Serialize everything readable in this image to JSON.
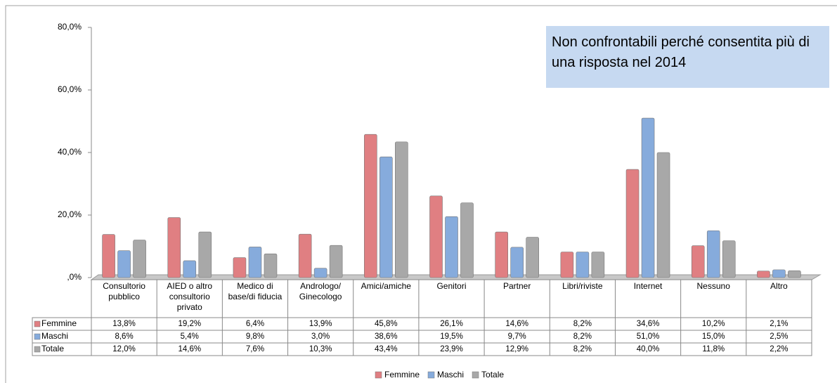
{
  "chart_data": {
    "type": "bar",
    "annotation": "Non confrontabili perché consentita più di una risposta nel 2014",
    "categories": [
      "Consultorio pubblico",
      "AIED o altro consultorio privato",
      "Medico di base/di fiducia",
      "Andrologo/ Ginecologo",
      "Amici/amiche",
      "Genitori",
      "Partner",
      "Libri/riviste",
      "Internet",
      "Nessuno",
      "Altro"
    ],
    "series": [
      {
        "name": "Femmine",
        "color": "#e07f82",
        "values": [
          13.8,
          19.2,
          6.4,
          13.9,
          45.8,
          26.1,
          14.6,
          8.2,
          34.6,
          10.2,
          2.1
        ],
        "value_labels": [
          "13,8%",
          "19,2%",
          "6,4%",
          "13,9%",
          "45,8%",
          "26,1%",
          "14,6%",
          "8,2%",
          "34,6%",
          "10,2%",
          "2,1%"
        ]
      },
      {
        "name": "Maschi",
        "color": "#86abdc",
        "values": [
          8.6,
          5.4,
          9.8,
          3.0,
          38.6,
          19.5,
          9.7,
          8.2,
          51.0,
          15.0,
          2.5
        ],
        "value_labels": [
          "8,6%",
          "5,4%",
          "9,8%",
          "3,0%",
          "38,6%",
          "19,5%",
          "9,7%",
          "8,2%",
          "51,0%",
          "15,0%",
          "2,5%"
        ]
      },
      {
        "name": "Totale",
        "color": "#a8a8a8",
        "values": [
          12.0,
          14.6,
          7.6,
          10.3,
          43.4,
          23.9,
          12.9,
          8.2,
          40.0,
          11.8,
          2.2
        ],
        "value_labels": [
          "12,0%",
          "14,6%",
          "7,6%",
          "10,3%",
          "43,4%",
          "23,9%",
          "12,9%",
          "8,2%",
          "40,0%",
          "11,8%",
          "2,2%"
        ]
      }
    ],
    "ylim": [
      0,
      80
    ],
    "yticks": [
      {
        "value": 0,
        "label": ",0%"
      },
      {
        "value": 20,
        "label": "20,0%"
      },
      {
        "value": 40,
        "label": "40,0%"
      },
      {
        "value": 60,
        "label": "60,0%"
      },
      {
        "value": 80,
        "label": "80,0%"
      }
    ]
  }
}
